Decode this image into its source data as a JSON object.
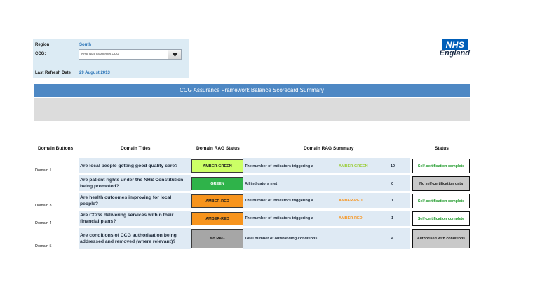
{
  "info": {
    "region_label": "Region",
    "region_value": "South",
    "ccg_label": "CCG:",
    "ccg_value": "NHS North Somerset CCG",
    "refresh_label": "Last Refresh Date",
    "refresh_value": "29 August 2013"
  },
  "logo": {
    "nhs": "NHS",
    "england": "England",
    "color": "#005eb8"
  },
  "banner_title": "CCG Assurance Framework Balance Scorecard Summary",
  "headers": {
    "domain_buttons": "Domain Buttons",
    "domain_titles": "Domain Titles",
    "rag_status": "Domain RAG Status",
    "rag_summary": "Domain RAG Summary",
    "status": "Status"
  },
  "rows": [
    {
      "domain": "Domain 1",
      "title": "Are local people getting good quality care?",
      "rag": "AMBER-GREEN",
      "rag_color": "#ccff66",
      "summary": "The number of indicators triggering a",
      "summary_rag": "AMBER-GREEN",
      "summary_rag_color": "#99cc33",
      "count": "10",
      "status": "Self-certification complete"
    },
    {
      "domain": "",
      "title": "Are patient rights under the NHS Constitution being promoted?",
      "rag": "GREEN",
      "rag_color": "#2fb34a",
      "summary": "All indicators met",
      "summary_rag": "",
      "summary_rag_color": "",
      "count": "0",
      "status": "No self-certification data"
    },
    {
      "domain": "Domain 3",
      "title": "Are health outcomes improving for local people?",
      "rag": "AMBER-RED",
      "rag_color": "#f7941d",
      "summary": "The number of indicators triggering a",
      "summary_rag": "AMBER-RED",
      "summary_rag_color": "#f7941d",
      "count": "1",
      "status": "Self-certification complete"
    },
    {
      "domain": "Domain 4",
      "title": "Are CCGs delivering services within their financial plans?",
      "rag": "AMBER-RED",
      "rag_color": "#f7941d",
      "summary": "The number of indicators triggering a",
      "summary_rag": "AMBER-RED",
      "summary_rag_color": "#f7941d",
      "count": "1",
      "status": "Self-certification complete"
    },
    {
      "domain": "Domain 5",
      "title": "Are conditions of CCG authorisation being addressed and removed (where relevant)?",
      "rag": "No RAG",
      "rag_color": "#a6a6a6",
      "summary": "Total number of outstanding conditions",
      "summary_rag": "",
      "summary_rag_color": "",
      "count": "4",
      "status": "Authorised with conditions"
    }
  ]
}
